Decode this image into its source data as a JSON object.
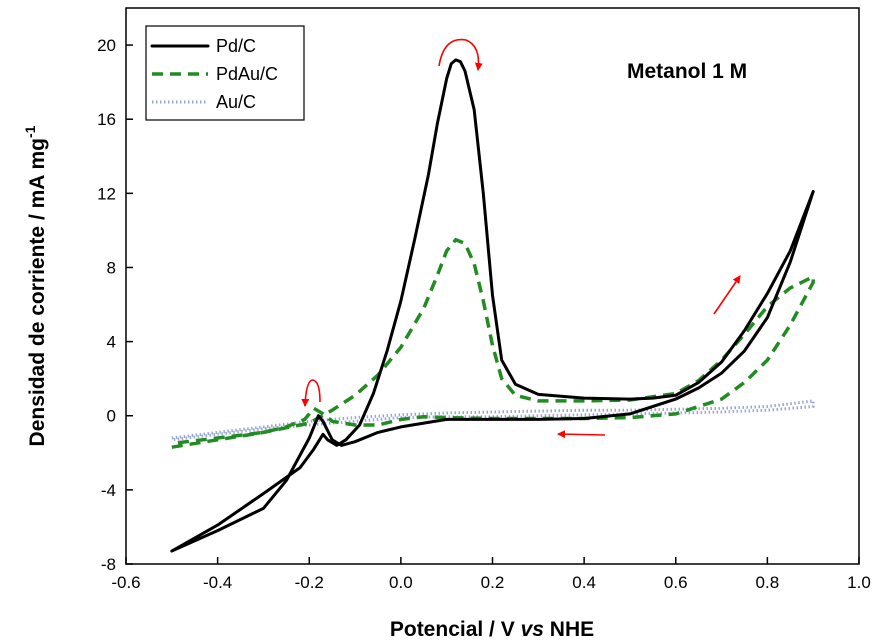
{
  "chart_data": {
    "type": "line",
    "xlabel": {
      "prefix": "Potencial / V ",
      "italic": "vs",
      "suffix": " NHE"
    },
    "ylabel": {
      "main": "Densidad de corriente / mA mg",
      "superscript": "-1"
    },
    "xlim": [
      -0.6,
      1.0
    ],
    "ylim": [
      -8,
      22
    ],
    "x_ticks": [
      -0.6,
      -0.4,
      -0.2,
      0.0,
      0.2,
      0.4,
      0.6,
      0.8,
      1.0
    ],
    "x_tick_labels": [
      "-0.6",
      "-0.4",
      "-0.2",
      "0.0",
      "0.2",
      "0.4",
      "0.6",
      "0.8",
      "1.0"
    ],
    "y_ticks": [
      -8,
      -4,
      0,
      4,
      8,
      12,
      16,
      20
    ],
    "y_tick_labels": [
      "-8",
      "-4",
      "0",
      "4",
      "8",
      "12",
      "16",
      "20"
    ],
    "grid": false,
    "legend_position": "top-left",
    "annotation": "Metanol 1 M",
    "colors": {
      "pdc": "#000000",
      "pdauc": "#228b22",
      "auc": "#9aa6d6",
      "arrow": "#ff0000"
    },
    "series": [
      {
        "name": "Pd/C",
        "style": "solid",
        "x": [
          -0.5,
          -0.4,
          -0.3,
          -0.22,
          -0.19,
          -0.17,
          -0.16,
          -0.14,
          -0.12,
          -0.09,
          -0.06,
          -0.03,
          0.0,
          0.03,
          0.06,
          0.08,
          0.1,
          0.11,
          0.12,
          0.13,
          0.14,
          0.16,
          0.18,
          0.2,
          0.22,
          0.25,
          0.3,
          0.4,
          0.5,
          0.55,
          0.6,
          0.65,
          0.7,
          0.75,
          0.8,
          0.85,
          0.9,
          0.9,
          0.85,
          0.8,
          0.75,
          0.7,
          0.65,
          0.6,
          0.5,
          0.4,
          0.3,
          0.2,
          0.1,
          0.0,
          -0.05,
          -0.1,
          -0.13,
          -0.15,
          -0.17,
          -0.18,
          -0.2,
          -0.25,
          -0.3,
          -0.4,
          -0.5
        ],
        "y": [
          -7.3,
          -5.9,
          -4.2,
          -2.8,
          -1.8,
          -1.0,
          -1.3,
          -1.6,
          -1.3,
          -0.5,
          1.2,
          3.5,
          6.2,
          9.5,
          13.0,
          15.8,
          18.2,
          19.0,
          19.2,
          19.1,
          18.6,
          16.5,
          12.0,
          6.5,
          3.0,
          1.7,
          1.15,
          0.95,
          0.9,
          0.95,
          1.1,
          1.8,
          2.9,
          4.6,
          6.6,
          8.9,
          12.1,
          12.1,
          8.3,
          5.3,
          3.5,
          2.3,
          1.5,
          0.9,
          0.1,
          -0.15,
          -0.2,
          -0.2,
          -0.2,
          -0.6,
          -0.9,
          -1.4,
          -1.6,
          -1.3,
          -0.3,
          0.0,
          -1.2,
          -3.5,
          -5.0,
          -6.2,
          -7.3
        ]
      },
      {
        "name": "PdAu/C",
        "style": "dashed",
        "x": [
          -0.5,
          -0.4,
          -0.3,
          -0.2,
          -0.15,
          -0.1,
          -0.05,
          0.0,
          0.05,
          0.08,
          0.1,
          0.12,
          0.14,
          0.16,
          0.18,
          0.2,
          0.22,
          0.25,
          0.3,
          0.4,
          0.5,
          0.6,
          0.65,
          0.7,
          0.75,
          0.8,
          0.85,
          0.9,
          0.9,
          0.85,
          0.8,
          0.75,
          0.7,
          0.6,
          0.5,
          0.4,
          0.3,
          0.2,
          0.1,
          0.05,
          0.0,
          -0.05,
          -0.1,
          -0.15,
          -0.17,
          -0.19,
          -0.21,
          -0.25,
          -0.3,
          -0.4,
          -0.5
        ],
        "y": [
          -1.7,
          -1.3,
          -0.9,
          -0.4,
          0.3,
          1.1,
          2.2,
          3.7,
          5.8,
          7.6,
          8.9,
          9.5,
          9.3,
          8.2,
          6.2,
          3.8,
          2.0,
          1.1,
          0.8,
          0.8,
          0.85,
          1.2,
          1.9,
          3.0,
          4.4,
          5.9,
          6.9,
          7.5,
          7.2,
          4.9,
          3.0,
          1.8,
          0.9,
          0.1,
          -0.1,
          -0.15,
          -0.15,
          -0.15,
          -0.1,
          -0.05,
          -0.2,
          -0.5,
          -0.5,
          -0.3,
          0.1,
          0.4,
          -0.2,
          -0.6,
          -0.9,
          -1.2,
          -1.5
        ]
      },
      {
        "name": "Au/C",
        "style": "dotted",
        "x": [
          -0.5,
          -0.4,
          -0.3,
          -0.2,
          -0.1,
          0.0,
          0.1,
          0.2,
          0.3,
          0.4,
          0.5,
          0.6,
          0.7,
          0.8,
          0.9,
          0.9,
          0.8,
          0.7,
          0.6,
          0.5,
          0.4,
          0.3,
          0.2,
          0.1,
          0.0,
          -0.1,
          -0.2,
          -0.3,
          -0.4,
          -0.5
        ],
        "y": [
          -1.2,
          -0.9,
          -0.6,
          -0.3,
          -0.1,
          0.05,
          0.15,
          0.2,
          0.25,
          0.3,
          0.3,
          0.35,
          0.4,
          0.5,
          0.8,
          0.5,
          0.3,
          0.2,
          0.15,
          0.1,
          0.05,
          0.0,
          -0.05,
          -0.05,
          -0.1,
          -0.3,
          -0.5,
          -0.7,
          -1.0,
          -1.3
        ]
      }
    ]
  }
}
